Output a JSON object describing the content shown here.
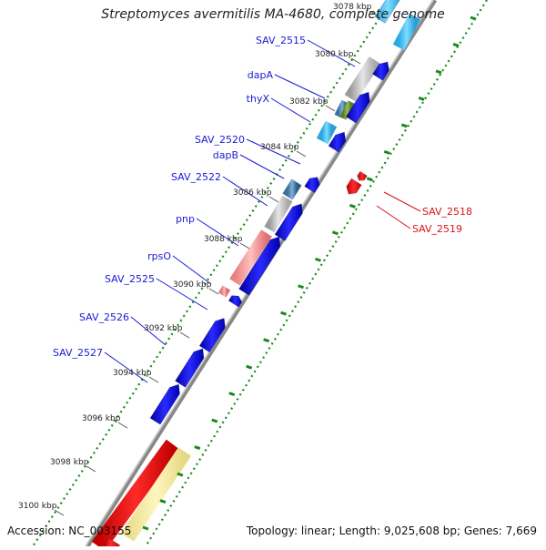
{
  "title": "Streptomyces avermitilis MA-4680, complete genome",
  "accession": "Accession: NC_003155",
  "topology": "Topology: linear; Length: 9,025,608 bp; Genes: 7,669",
  "tick_labels": [
    "3078 kbp",
    "3080 kbp",
    "3082 kbp",
    "3084 kbp",
    "3086 kbp",
    "3088 kbp",
    "3090 kbp",
    "3092 kbp",
    "3094 kbp",
    "3096 kbp",
    "3098 kbp",
    "3100 kbp"
  ],
  "gene_labels_blue": [
    "SAV_2515",
    "dapA",
    "thyX",
    "SAV_2520",
    "dapB",
    "SAV_2522",
    "pnp",
    "rpsO",
    "SAV_2525",
    "SAV_2526",
    "SAV_2527"
  ],
  "gene_labels_red": [
    "SAV_2518",
    "SAV_2519"
  ],
  "colors": {
    "forward_gene": "#0000ee",
    "reverse_gene": "#ee0000",
    "blue_label": "#1a1ad6",
    "red_label": "#dd1111",
    "tick": "#1a8a1a",
    "backbone": "#888888"
  }
}
